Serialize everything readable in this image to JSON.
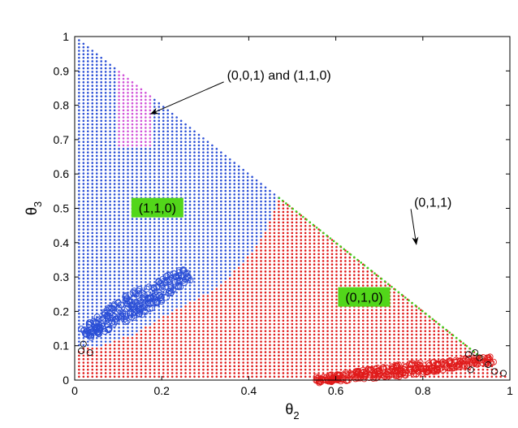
{
  "chart_data": {
    "type": "scatter",
    "title": "",
    "xlabel": "θ",
    "xlabel_sub": "2",
    "ylabel": "θ",
    "ylabel_sub": "3",
    "xlim": [
      0,
      1
    ],
    "ylim": [
      0,
      1
    ],
    "x_ticks": [
      0,
      0.2,
      0.4,
      0.6,
      0.8,
      1
    ],
    "x_tick_labels": [
      "0",
      "0.2",
      "0.4",
      "0.6",
      "0.8",
      "1"
    ],
    "y_ticks": [
      0,
      0.1,
      0.2,
      0.3,
      0.4,
      0.5,
      0.6,
      0.7,
      0.8,
      0.9,
      1
    ],
    "y_tick_labels": [
      "0",
      "0.1",
      "0.2",
      "0.3",
      "0.4",
      "0.5",
      "0.6",
      "0.7",
      "0.8",
      "0.9",
      "1"
    ],
    "grid": false,
    "colors": {
      "blue_dots": "#2b4fd6",
      "red_dots": "#e01b1b",
      "magenta_dots": "#d050d8",
      "green_dots": "#3fd21b",
      "label_box": "#52d61a",
      "black_circles": "#000000"
    },
    "regions": [
      {
        "label": "(1,1,0)",
        "color": "blue",
        "marker": "dot",
        "description_vertices": [
          [
            0.01,
            0.99
          ],
          [
            0.47,
            0.53
          ],
          [
            0.44,
            0.44
          ],
          [
            0.4,
            0.36
          ],
          [
            0.33,
            0.27
          ],
          [
            0.24,
            0.21
          ],
          [
            0.13,
            0.13
          ],
          [
            0.06,
            0.1
          ],
          [
            0.01,
            0.1
          ]
        ]
      },
      {
        "label": "(0,1,0)",
        "color": "red",
        "marker": "dot",
        "description_vertices": [
          [
            0.01,
            0.01
          ],
          [
            0.99,
            0.01
          ],
          [
            0.47,
            0.53
          ],
          [
            0.44,
            0.44
          ],
          [
            0.4,
            0.36
          ],
          [
            0.33,
            0.27
          ],
          [
            0.24,
            0.21
          ],
          [
            0.13,
            0.13
          ],
          [
            0.06,
            0.1
          ],
          [
            0.01,
            0.09
          ]
        ]
      },
      {
        "label": "(0,0,1) and (1,1,0)",
        "color": "magenta",
        "marker": "dot",
        "center": [
          0.14,
          0.79
        ],
        "half_width": [
          0.04,
          0.11
        ]
      },
      {
        "label": "(0,1,1)",
        "color": "green",
        "marker": "dot",
        "line": [
          [
            0.47,
            0.53
          ],
          [
            0.94,
            0.06
          ]
        ]
      }
    ],
    "circle_clusters": [
      {
        "color": "blue",
        "center": [
          0.145,
          0.225
        ],
        "direction": [
          0.121,
          0.09
        ],
        "spread": 0.035
      },
      {
        "color": "red",
        "center": [
          0.76,
          0.03
        ],
        "direction": [
          0.205,
          0.03
        ],
        "spread": 0.018
      }
    ],
    "annotations": [
      {
        "text": "(0,0,1) and (1,1,0)",
        "text_pos": [
          0.35,
          0.875
        ],
        "arrow_to": [
          0.175,
          0.775
        ]
      },
      {
        "text": "(0,1,1)",
        "text_pos": [
          0.78,
          0.505
        ],
        "arrow_to": [
          0.785,
          0.395
        ]
      }
    ],
    "region_labels": [
      {
        "text": "(1,1,0)",
        "pos": [
          0.19,
          0.502
        ],
        "boxed": true
      },
      {
        "text": "(0,1,0)",
        "pos": [
          0.665,
          0.242
        ],
        "boxed": true
      }
    ]
  }
}
